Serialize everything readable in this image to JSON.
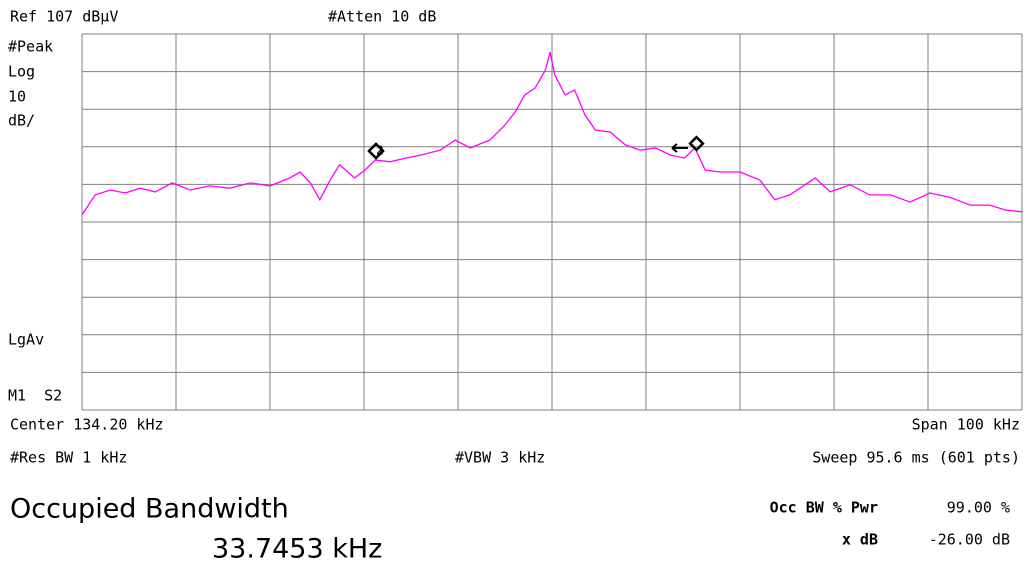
{
  "header": {
    "ref": "Ref 107 dBµV",
    "atten": "#Atten 10 dB"
  },
  "left_labels": [
    "#Peak",
    "Log",
    "10",
    "dB/",
    "LgAv",
    "M1  S2"
  ],
  "chart_data": {
    "type": "line",
    "color": "#ff00ff",
    "xlim": [
      84.2,
      184.2
    ],
    "ylim": [
      7,
      107
    ],
    "x": [
      84.2,
      85.6,
      87.2,
      88.8,
      90.4,
      92.0,
      93.8,
      95.7,
      97.8,
      99.9,
      102.1,
      104.2,
      106.3,
      107.4,
      108.5,
      109.5,
      110.6,
      111.6,
      113.2,
      114.3,
      115.4,
      117.0,
      118.6,
      120.2,
      122.3,
      123.9,
      125.5,
      127.6,
      129.2,
      130.3,
      131.3,
      132.4,
      133.5,
      134.0,
      134.5,
      135.6,
      136.6,
      137.7,
      138.8,
      140.4,
      142.0,
      143.6,
      145.2,
      146.8,
      148.3,
      149.4,
      150.5,
      152.1,
      154.2,
      156.3,
      157.9,
      159.5,
      161.1,
      162.2,
      163.8,
      165.9,
      168.0,
      170.2,
      172.3,
      174.4,
      176.5,
      178.7,
      180.8,
      182.4,
      184.2
    ],
    "values": [
      58.9,
      64.2,
      65.5,
      64.7,
      66.0,
      65.0,
      67.4,
      65.5,
      66.6,
      66.0,
      67.4,
      66.6,
      68.7,
      70.3,
      67.4,
      62.9,
      68.2,
      72.2,
      68.7,
      70.8,
      73.5,
      73.0,
      74.0,
      74.8,
      76.1,
      78.8,
      76.7,
      78.8,
      82.8,
      86.3,
      90.8,
      92.6,
      97.4,
      102.2,
      96.1,
      90.8,
      92.1,
      85.5,
      81.5,
      80.9,
      77.5,
      76.1,
      76.7,
      74.8,
      74.0,
      76.7,
      70.8,
      70.3,
      70.3,
      68.2,
      62.9,
      64.2,
      66.9,
      68.7,
      65.0,
      66.9,
      64.2,
      64.2,
      62.3,
      64.7,
      63.6,
      61.5,
      61.5,
      60.2,
      59.7
    ]
  },
  "footer": {
    "center": "Center 134.20 kHz",
    "span": "Span 100 kHz",
    "res_bw": "#Res BW 1 kHz",
    "vbw": "#VBW 3 kHz",
    "sweep": "Sweep 95.6 ms (601 pts)"
  },
  "results": {
    "title": "Occupied Bandwidth",
    "value": "33.7453 kHz",
    "rows": [
      {
        "label": "Occ BW % Pwr",
        "value": "99.00 %"
      },
      {
        "label": "x dB",
        "value": "-26.00 dB"
      }
    ]
  }
}
